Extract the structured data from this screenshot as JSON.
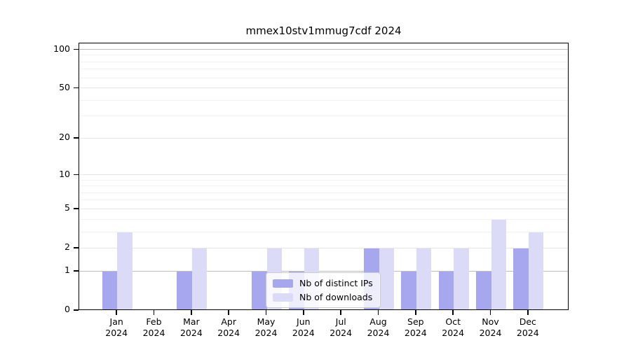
{
  "title": "mmex10stv1mmug7cdf 2024",
  "legend": {
    "items": [
      {
        "label": "Nb of distinct IPs",
        "color": "#a7a7f0"
      },
      {
        "label": "Nb of downloads",
        "color": "#dbdbf7"
      }
    ]
  },
  "y_axis": {
    "tick_labels": [
      "0",
      "1",
      "2",
      "5",
      "10",
      "20",
      "50",
      "100"
    ]
  },
  "chart_data": {
    "type": "bar",
    "title": "mmex10stv1mmug7cdf 2024",
    "categories": [
      "Jan 2024",
      "Feb 2024",
      "Mar 2024",
      "Apr 2024",
      "May 2024",
      "Jun 2024",
      "Jul 2024",
      "Aug 2024",
      "Sep 2024",
      "Oct 2024",
      "Nov 2024",
      "Dec 2024"
    ],
    "series": [
      {
        "name": "Nb of distinct IPs",
        "color": "#a7a7f0",
        "values": [
          1,
          0,
          1,
          0,
          1,
          1,
          0,
          2,
          1,
          1,
          1,
          2
        ]
      },
      {
        "name": "Nb of downloads",
        "color": "#dbdbf7",
        "values": [
          3,
          0,
          2,
          0,
          2,
          2,
          0,
          2,
          2,
          2,
          4,
          3
        ]
      }
    ],
    "xlabel": "",
    "ylabel": "",
    "yscale": "log1p",
    "ylim": [
      0,
      113
    ],
    "y_major_ticks": [
      0,
      1,
      2,
      5,
      10,
      20,
      50,
      100
    ],
    "y_emphasized_gridlines": [
      1,
      100
    ],
    "y_minor_gridlines": [
      3,
      4,
      6,
      7,
      8,
      9,
      30,
      40,
      60,
      70,
      80,
      90
    ],
    "grid": true,
    "legend_position": "lower center-left inside plot"
  }
}
